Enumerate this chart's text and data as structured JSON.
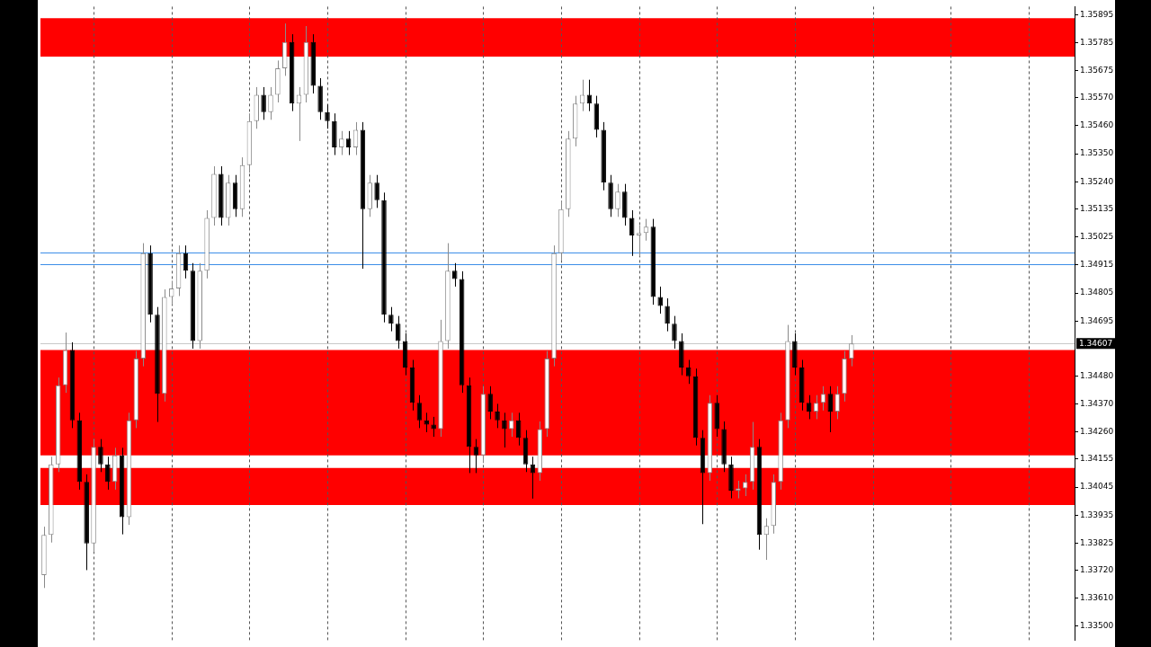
{
  "chart_data": {
    "type": "candlestick",
    "tick_labels": "y",
    "legend": false,
    "grid": false,
    "categories": [
      null,
      null,
      null,
      null,
      null,
      null,
      null,
      null,
      null,
      null,
      null,
      null,
      null,
      null,
      null,
      null,
      null,
      null,
      null,
      null,
      null,
      null,
      null,
      null,
      null,
      null,
      null,
      null,
      null,
      null,
      null,
      null,
      null,
      null,
      null,
      null,
      null,
      null,
      null,
      null,
      null,
      null,
      null,
      null,
      null,
      null,
      null,
      null,
      null,
      null,
      null,
      null,
      null,
      null,
      null,
      null,
      null,
      null,
      null,
      null,
      null,
      null,
      null,
      null,
      null,
      null,
      null,
      null,
      null,
      null,
      null,
      null,
      null,
      null,
      null,
      null,
      null,
      null,
      null,
      null,
      null,
      null,
      null,
      null,
      null,
      null,
      null,
      null,
      null,
      null,
      null,
      null,
      null,
      null,
      null,
      null,
      null,
      null,
      null,
      null,
      null,
      null,
      null,
      null,
      null,
      null,
      null,
      null,
      null,
      null,
      null,
      null,
      null,
      null,
      null,
      null,
      null,
      null,
      null,
      null,
      null,
      null,
      null,
      null,
      null,
      null,
      null,
      null,
      null,
      null,
      null,
      null,
      null,
      null,
      null,
      null,
      null,
      null,
      null,
      null,
      null,
      null,
      null,
      null,
      null,
      null
    ],
    "ohlc": [
      [
        1.337,
        1.3389,
        1.3365,
        1.33858
      ],
      [
        1.33858,
        1.34164,
        1.33828,
        1.34134
      ],
      [
        1.34134,
        1.34474,
        1.34104,
        1.34444
      ],
      [
        1.34444,
        1.3465,
        1.34414,
        1.34582
      ],
      [
        1.34582,
        1.34612,
        1.34276,
        1.34306
      ],
      [
        1.34306,
        1.34336,
        1.34035,
        1.34065
      ],
      [
        1.34065,
        1.34095,
        1.3372,
        1.33824
      ],
      [
        1.33824,
        1.34233,
        1.33794,
        1.34203
      ],
      [
        1.34203,
        1.34233,
        1.34104,
        1.34134
      ],
      [
        1.34134,
        1.34164,
        1.34035,
        1.34065
      ],
      [
        1.34065,
        1.34199,
        1.34035,
        1.34169
      ],
      [
        1.34169,
        1.34199,
        1.3386,
        1.33927
      ],
      [
        1.33927,
        1.34336,
        1.33897,
        1.34306
      ],
      [
        1.34306,
        1.34578,
        1.34276,
        1.34548
      ],
      [
        1.34548,
        1.35,
        1.34518,
        1.34961
      ],
      [
        1.34961,
        1.34991,
        1.3469,
        1.3472
      ],
      [
        1.3472,
        1.3475,
        1.343,
        1.3441
      ],
      [
        1.3441,
        1.34819,
        1.3438,
        1.34789
      ],
      [
        1.34789,
        1.34853,
        1.34759,
        1.34823
      ],
      [
        1.34823,
        1.34991,
        1.34793,
        1.34961
      ],
      [
        1.34961,
        1.34991,
        1.34862,
        1.34892
      ],
      [
        1.34892,
        1.34922,
        1.34587,
        1.34617
      ],
      [
        1.34617,
        1.34922,
        1.34587,
        1.34892
      ],
      [
        1.34892,
        1.35129,
        1.34862,
        1.35099
      ],
      [
        1.35099,
        1.35301,
        1.35069,
        1.35271
      ],
      [
        1.35271,
        1.35301,
        1.35069,
        1.35099
      ],
      [
        1.35099,
        1.35267,
        1.35069,
        1.35237
      ],
      [
        1.35237,
        1.35267,
        1.35103,
        1.35133
      ],
      [
        1.35133,
        1.35336,
        1.35103,
        1.35306
      ],
      [
        1.35306,
        1.35508,
        1.35276,
        1.35478
      ],
      [
        1.35478,
        1.35611,
        1.35448,
        1.35581
      ],
      [
        1.35581,
        1.35611,
        1.35483,
        1.35513
      ],
      [
        1.35513,
        1.35611,
        1.35483,
        1.35581
      ],
      [
        1.35581,
        1.35715,
        1.35551,
        1.35685
      ],
      [
        1.35685,
        1.3586,
        1.35655,
        1.35788
      ],
      [
        1.35788,
        1.35818,
        1.35517,
        1.35547
      ],
      [
        1.35547,
        1.35611,
        1.354,
        1.35581
      ],
      [
        1.35581,
        1.3585,
        1.35551,
        1.35788
      ],
      [
        1.35788,
        1.35818,
        1.35586,
        1.35616
      ],
      [
        1.35616,
        1.35646,
        1.35483,
        1.35513
      ],
      [
        1.35513,
        1.35543,
        1.35448,
        1.35478
      ],
      [
        1.35478,
        1.35508,
        1.35345,
        1.35375
      ],
      [
        1.35375,
        1.35439,
        1.35345,
        1.35409
      ],
      [
        1.35409,
        1.35439,
        1.35345,
        1.35375
      ],
      [
        1.35375,
        1.35474,
        1.35345,
        1.35444
      ],
      [
        1.35444,
        1.35474,
        1.349,
        1.35133
      ],
      [
        1.35133,
        1.35267,
        1.35103,
        1.35237
      ],
      [
        1.35237,
        1.35267,
        1.35138,
        1.35168
      ],
      [
        1.35168,
        1.35198,
        1.3469,
        1.3472
      ],
      [
        1.3472,
        1.3475,
        1.34655,
        1.34685
      ],
      [
        1.34685,
        1.34715,
        1.34587,
        1.34617
      ],
      [
        1.34617,
        1.34647,
        1.34483,
        1.34513
      ],
      [
        1.34513,
        1.34543,
        1.34345,
        1.34375
      ],
      [
        1.34375,
        1.34405,
        1.34276,
        1.34306
      ],
      [
        1.34306,
        1.34336,
        1.3426,
        1.3429
      ],
      [
        1.3429,
        1.3432,
        1.34242,
        1.34272
      ],
      [
        1.34272,
        1.347,
        1.34242,
        1.34617
      ],
      [
        1.34617,
        1.35,
        1.34587,
        1.34892
      ],
      [
        1.34892,
        1.34922,
        1.3483,
        1.3486
      ],
      [
        1.3486,
        1.3489,
        1.34414,
        1.34444
      ],
      [
        1.34444,
        1.34474,
        1.341,
        1.34203
      ],
      [
        1.34203,
        1.34233,
        1.341,
        1.34169
      ],
      [
        1.34169,
        1.3444,
        1.34139,
        1.3441
      ],
      [
        1.3441,
        1.3444,
        1.34311,
        1.34341
      ],
      [
        1.34341,
        1.34371,
        1.34276,
        1.34306
      ],
      [
        1.34306,
        1.34336,
        1.342,
        1.34272
      ],
      [
        1.34272,
        1.34336,
        1.34242,
        1.34306
      ],
      [
        1.34306,
        1.34336,
        1.34208,
        1.34238
      ],
      [
        1.34238,
        1.34268,
        1.34104,
        1.34134
      ],
      [
        1.34134,
        1.34164,
        1.34,
        1.341
      ],
      [
        1.341,
        1.34302,
        1.3407,
        1.34272
      ],
      [
        1.34272,
        1.34578,
        1.34242,
        1.34548
      ],
      [
        1.34548,
        1.34991,
        1.34518,
        1.34961
      ],
      [
        1.34961,
        1.35163,
        1.34931,
        1.35133
      ],
      [
        1.35133,
        1.35439,
        1.35103,
        1.35409
      ],
      [
        1.35409,
        1.35577,
        1.35379,
        1.35547
      ],
      [
        1.35547,
        1.3564,
        1.35517,
        1.35581
      ],
      [
        1.35581,
        1.3564,
        1.35517,
        1.35547
      ],
      [
        1.35547,
        1.35577,
        1.35414,
        1.35444
      ],
      [
        1.35444,
        1.35474,
        1.35207,
        1.35237
      ],
      [
        1.35237,
        1.35267,
        1.35103,
        1.35133
      ],
      [
        1.35133,
        1.35232,
        1.35103,
        1.35202
      ],
      [
        1.35202,
        1.35232,
        1.35069,
        1.35099
      ],
      [
        1.35099,
        1.35129,
        1.3495,
        1.3503
      ],
      [
        1.3503,
        1.3507,
        1.3495,
        1.3504
      ],
      [
        1.3504,
        1.35095,
        1.3501,
        1.35065
      ],
      [
        1.35065,
        1.35095,
        1.34759,
        1.34789
      ],
      [
        1.34789,
        1.3483,
        1.34724,
        1.34754
      ],
      [
        1.34754,
        1.34784,
        1.34655,
        1.34685
      ],
      [
        1.34685,
        1.34715,
        1.34587,
        1.34617
      ],
      [
        1.34617,
        1.34647,
        1.34483,
        1.34513
      ],
      [
        1.34513,
        1.34543,
        1.34449,
        1.34479
      ],
      [
        1.34479,
        1.34509,
        1.34208,
        1.34238
      ],
      [
        1.34238,
        1.34268,
        1.339,
        1.341
      ],
      [
        1.341,
        1.34405,
        1.3407,
        1.34375
      ],
      [
        1.34375,
        1.34405,
        1.34242,
        1.34272
      ],
      [
        1.34272,
        1.34302,
        1.34104,
        1.34134
      ],
      [
        1.34134,
        1.34164,
        1.34001,
        1.34031
      ],
      [
        1.34031,
        1.3407,
        1.34001,
        1.3404
      ],
      [
        1.3404,
        1.34095,
        1.3401,
        1.34065
      ],
      [
        1.34065,
        1.343,
        1.34035,
        1.34203
      ],
      [
        1.34203,
        1.34233,
        1.338,
        1.33858
      ],
      [
        1.33858,
        1.33923,
        1.3376,
        1.33893
      ],
      [
        1.33893,
        1.34095,
        1.33863,
        1.34065
      ],
      [
        1.34065,
        1.34336,
        1.34035,
        1.34306
      ],
      [
        1.34306,
        1.3468,
        1.34276,
        1.34617
      ],
      [
        1.34617,
        1.34647,
        1.34483,
        1.34513
      ],
      [
        1.34513,
        1.34543,
        1.34345,
        1.34375
      ],
      [
        1.34375,
        1.34405,
        1.34311,
        1.34341
      ],
      [
        1.34341,
        1.34405,
        1.34311,
        1.34375
      ],
      [
        1.34375,
        1.3444,
        1.34345,
        1.3441
      ],
      [
        1.3441,
        1.3444,
        1.3426,
        1.34341
      ],
      [
        1.34341,
        1.3444,
        1.34311,
        1.3441
      ],
      [
        1.3441,
        1.34578,
        1.3438,
        1.34548
      ],
      [
        1.34548,
        1.3464,
        1.34518,
        1.34607
      ],
      null,
      null,
      null,
      null,
      null,
      null,
      null,
      null,
      null,
      null,
      null,
      null,
      null,
      null,
      null,
      null,
      null,
      null,
      null,
      null,
      null,
      null,
      null,
      null,
      null,
      null,
      null,
      null,
      null,
      null,
      null
    ],
    "ylim": [
      1.33445,
      1.35926
    ],
    "yticks": [
      1.35895,
      1.35785,
      1.35675,
      {
        "value": 1.3557,
        "label": "1.35570"
      },
      {
        "value": 1.3546,
        "label": "1.35460"
      },
      {
        "value": 1.3535,
        "label": "1.35350"
      },
      {
        "value": 1.3524,
        "label": "1.35240"
      },
      1.35135,
      1.35025,
      1.34915,
      1.34805,
      1.34695,
      {
        "value": 1.3448,
        "label": "1.34480"
      },
      {
        "value": 1.3437,
        "label": "1.34370"
      },
      {
        "value": 1.3426,
        "label": "1.34260"
      },
      1.34155,
      1.34045,
      1.33935,
      1.33825,
      {
        "value": 1.3372,
        "label": "1.33720"
      },
      {
        "value": 1.3361,
        "label": "1.33610"
      },
      {
        "value": 1.335,
        "label": "1.33500"
      }
    ],
    "bands": [
      {
        "axis": "y",
        "from": 1.3573,
        "to": 1.35881,
        "color": "#ff0000"
      },
      {
        "axis": "y",
        "from": 1.34169,
        "to": 1.34582,
        "color": "#ff0000"
      },
      {
        "axis": "y",
        "from": 1.33975,
        "to": 1.3412,
        "color": "#ff0000"
      }
    ],
    "ref_lines": [
      {
        "axis": "y",
        "value": 1.34965,
        "color": "#3c8ee8"
      },
      {
        "axis": "y",
        "value": 1.34916,
        "color": "#3c8ee8"
      },
      {
        "axis": "y",
        "value": 1.34607,
        "label": "1.34607",
        "color": "#c8c8c8"
      }
    ]
  }
}
